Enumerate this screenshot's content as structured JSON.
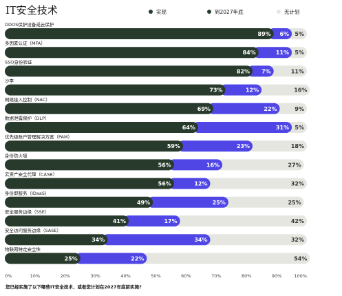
{
  "title": "IT安全技术",
  "legend": [
    {
      "name": "实现",
      "color": "#283a2c"
    },
    {
      "name": "到2027年底",
      "color": "#4f46e5"
    },
    {
      "name": "无计划",
      "color": "#e6e6e1"
    }
  ],
  "question": "您已经实施了以下哪些IT安全技术，或者您计划在2027年底前实施?",
  "chart_data": {
    "type": "bar",
    "orientation": "horizontal",
    "stacked": true,
    "xlim": [
      0,
      100
    ],
    "x_ticks": [
      "0%",
      "10%",
      "20%",
      "30%",
      "40%",
      "50%",
      "60%",
      "70%",
      "80%",
      "90%",
      "100%"
    ],
    "categories": [
      "DDOS保护设备或云保护",
      "多因素认证（MFA）",
      "SSO身份验证",
      "沙李",
      "网络接入控制（NAC）",
      "数据泄露保护（DLP）",
      "优先级账户管理解决方案（PAM）",
      "身份防火墙",
      "云资产安全代理（CASB）",
      "身份即服务（IDaaS）",
      "安全服务边缘（SSE）",
      "安全访问服务边缘（SASE）",
      "物联网特定安全性"
    ],
    "series": [
      {
        "name": "实现",
        "color": "#283a2c",
        "label_color": "#ffffff",
        "values": [
          89,
          84,
          82,
          73,
          69,
          64,
          59,
          56,
          56,
          49,
          41,
          34,
          25
        ]
      },
      {
        "name": "到2027年底",
        "color": "#4f46e5",
        "label_color": "#ffffff",
        "values": [
          6,
          11,
          7,
          12,
          22,
          31,
          23,
          16,
          12,
          25,
          17,
          34,
          22
        ]
      },
      {
        "name": "无计划",
        "color": "#e6e6e1",
        "label_color": "#333333",
        "values": [
          5,
          5,
          11,
          16,
          9,
          5,
          18,
          27,
          32,
          25,
          42,
          32,
          54
        ]
      }
    ]
  }
}
